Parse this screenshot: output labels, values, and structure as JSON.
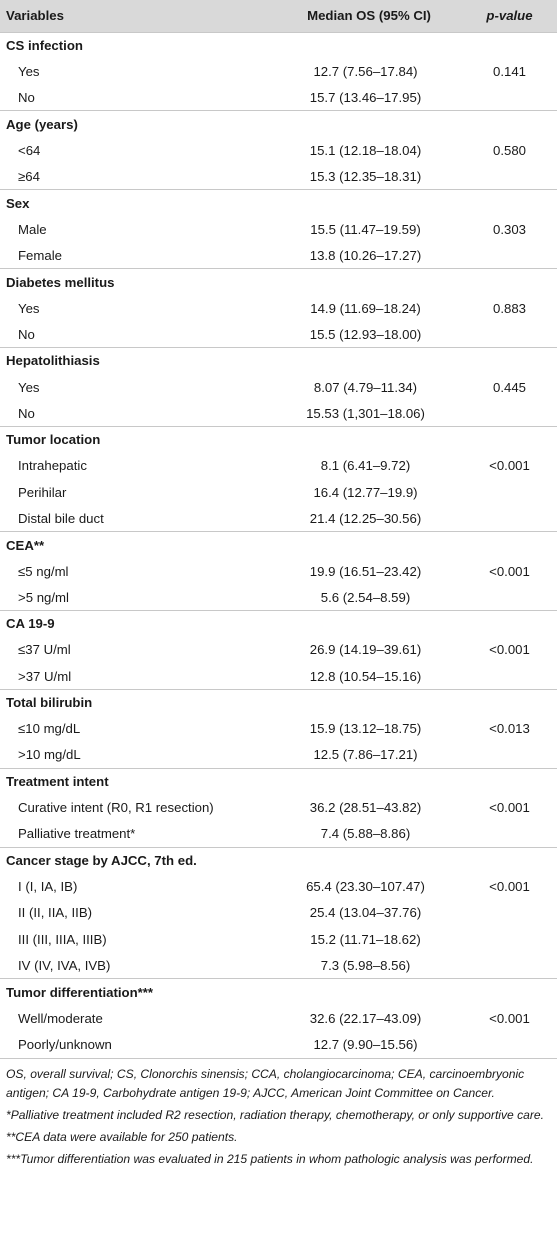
{
  "headers": {
    "variables": "Variables",
    "median": "Median OS (95% CI)",
    "pvalue": "p-value"
  },
  "groups": [
    {
      "name": "CS infection",
      "rows": [
        {
          "label": "Yes",
          "value": "12.7 (7.56–17.84)",
          "p": "0.141"
        },
        {
          "label": "No",
          "value": "15.7 (13.46–17.95)",
          "p": ""
        }
      ]
    },
    {
      "name": "Age (years)",
      "rows": [
        {
          "label": "<64",
          "value": "15.1 (12.18–18.04)",
          "p": "0.580"
        },
        {
          "label": "≥64",
          "value": "15.3 (12.35–18.31)",
          "p": ""
        }
      ]
    },
    {
      "name": "Sex",
      "rows": [
        {
          "label": "Male",
          "value": "15.5 (11.47–19.59)",
          "p": "0.303"
        },
        {
          "label": "Female",
          "value": "13.8 (10.26–17.27)",
          "p": ""
        }
      ]
    },
    {
      "name": "Diabetes mellitus",
      "rows": [
        {
          "label": "Yes",
          "value": "14.9 (11.69–18.24)",
          "p": "0.883"
        },
        {
          "label": "No",
          "value": "15.5 (12.93–18.00)",
          "p": ""
        }
      ]
    },
    {
      "name": "Hepatolithiasis",
      "rows": [
        {
          "label": "Yes",
          "value": "8.07 (4.79–11.34)",
          "p": "0.445"
        },
        {
          "label": "No",
          "value": "15.53 (1,301–18.06)",
          "p": ""
        }
      ]
    },
    {
      "name": "Tumor location",
      "rows": [
        {
          "label": "Intrahepatic",
          "value": "8.1 (6.41–9.72)",
          "p": "<0.001"
        },
        {
          "label": "Perihilar",
          "value": "16.4 (12.77–19.9)",
          "p": ""
        },
        {
          "label": "Distal bile duct",
          "value": "21.4 (12.25–30.56)",
          "p": ""
        }
      ]
    },
    {
      "name": "CEA**",
      "rows": [
        {
          "label": "≤5 ng/ml",
          "value": "19.9 (16.51–23.42)",
          "p": "<0.001"
        },
        {
          "label": ">5 ng/ml",
          "value": "5.6 (2.54–8.59)",
          "p": ""
        }
      ]
    },
    {
      "name": "CA 19-9",
      "rows": [
        {
          "label": "≤37 U/ml",
          "value": "26.9 (14.19–39.61)",
          "p": "<0.001"
        },
        {
          "label": ">37 U/ml",
          "value": "12.8 (10.54–15.16)",
          "p": ""
        }
      ]
    },
    {
      "name": "Total bilirubin",
      "rows": [
        {
          "label": "≤10 mg/dL",
          "value": "15.9 (13.12–18.75)",
          "p": "<0.013"
        },
        {
          "label": ">10 mg/dL",
          "value": "12.5 (7.86–17.21)",
          "p": ""
        }
      ]
    },
    {
      "name": "Treatment intent",
      "rows": [
        {
          "label": "Curative intent (R0, R1 resection)",
          "value": "36.2 (28.51–43.82)",
          "p": "<0.001"
        },
        {
          "label": "Palliative treatment*",
          "value": "7.4 (5.88–8.86)",
          "p": ""
        }
      ]
    },
    {
      "name": "Cancer stage by AJCC, 7th ed.",
      "rows": [
        {
          "label": "I (I, IA, IB)",
          "value": "65.4 (23.30–107.47)",
          "p": "<0.001"
        },
        {
          "label": "II (II, IIA, IIB)",
          "value": "25.4 (13.04–37.76)",
          "p": ""
        },
        {
          "label": "III (III, IIIA, IIIB)",
          "value": "15.2 (11.71–18.62)",
          "p": ""
        },
        {
          "label": "IV (IV, IVA, IVB)",
          "value": "7.3 (5.98–8.56)",
          "p": ""
        }
      ]
    },
    {
      "name": "Tumor differentiation***",
      "rows": [
        {
          "label": "Well/moderate",
          "value": "32.6 (22.17–43.09)",
          "p": "<0.001"
        },
        {
          "label": "Poorly/unknown",
          "value": "12.7 (9.90–15.56)",
          "p": ""
        }
      ]
    }
  ],
  "footnotes": [
    "OS, overall survival; CS, Clonorchis sinensis; CCA, cholangiocarcinoma; CEA, carcinoembryonic antigen; CA 19-9, Carbohydrate antigen 19-9; AJCC, American Joint Committee on Cancer.",
    "*Palliative treatment included R2 resection, radiation therapy, chemotherapy, or only supportive care.",
    "**CEA data were available for 250 patients.",
    "***Tumor differentiation was evaluated in 215 patients in whom pathologic analysis was performed."
  ]
}
